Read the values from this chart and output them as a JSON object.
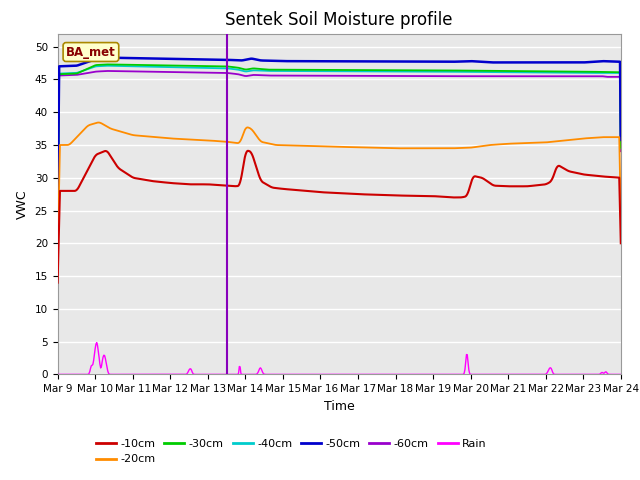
{
  "title": "Sentek Soil Moisture profile",
  "xlabel": "Time",
  "ylabel": "VWC",
  "legend_label": "BA_met",
  "ylim": [
    0,
    52
  ],
  "yticks": [
    0,
    5,
    10,
    15,
    20,
    25,
    30,
    35,
    40,
    45,
    50
  ],
  "x_tick_labels": [
    "Mar 9",
    "Mar 10",
    "Mar 11",
    "Mar 12",
    "Mar 13",
    "Mar 14",
    "Mar 15",
    "Mar 16",
    "Mar 17",
    "Mar 18",
    "Mar 19",
    "Mar 20",
    "Mar 21",
    "Mar 22",
    "Mar 23",
    "Mar 24"
  ],
  "colors": {
    "10cm": "#cc0000",
    "20cm": "#ff8c00",
    "30cm": "#00cc00",
    "40cm": "#00cccc",
    "50cm": "#0000cc",
    "60cm": "#9900cc",
    "rain": "#ff00ff",
    "vline": "#8800bb"
  },
  "bg_color": "#e8e8e8",
  "grid_color": "#ffffff",
  "title_fontsize": 12,
  "axis_label_fontsize": 9,
  "tick_fontsize": 7.5
}
